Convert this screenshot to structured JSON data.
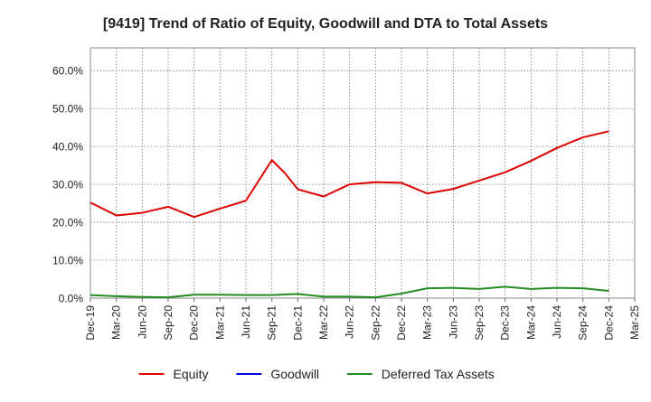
{
  "chart_data": {
    "type": "line",
    "title": "[9419]  Trend of Ratio of Equity, Goodwill and DTA to Total Assets",
    "xlabel": "",
    "ylabel": "",
    "ylim": [
      0,
      66
    ],
    "yticks": [
      0,
      10,
      20,
      30,
      40,
      50,
      60
    ],
    "ytick_labels": [
      "0.0%",
      "10.0%",
      "20.0%",
      "30.0%",
      "40.0%",
      "50.0%",
      "60.0%"
    ],
    "x_range": [
      0,
      21
    ],
    "x_tick_labels": [
      "Dec-19",
      "Mar-20",
      "Jun-20",
      "Sep-20",
      "Dec-20",
      "Mar-21",
      "Jun-21",
      "Sep-21",
      "Dec-21",
      "Mar-22",
      "Jun-22",
      "Sep-22",
      "Dec-22",
      "Mar-23",
      "Jun-23",
      "Sep-23",
      "Dec-23",
      "Mar-24",
      "Jun-24",
      "Sep-24",
      "Dec-24",
      "Mar-25"
    ],
    "grid": true,
    "legend_position": "bottom-center",
    "series": [
      {
        "name": "Equity",
        "color": "#dd0000",
        "points": [
          [
            0,
            25.2
          ],
          [
            1,
            21.8
          ],
          [
            2,
            22.5
          ],
          [
            3,
            24.1
          ],
          [
            4,
            21.4
          ],
          [
            5,
            23.6
          ],
          [
            6,
            25.7
          ],
          [
            7,
            36.4
          ],
          [
            7.5,
            33.0
          ],
          [
            8,
            28.7
          ],
          [
            9,
            26.8
          ],
          [
            10,
            30.0
          ],
          [
            11,
            30.6
          ],
          [
            12,
            30.4
          ],
          [
            13,
            27.6
          ],
          [
            14,
            28.8
          ],
          [
            15,
            31.0
          ],
          [
            16,
            33.2
          ],
          [
            17,
            36.2
          ],
          [
            18,
            39.6
          ],
          [
            19,
            42.4
          ],
          [
            20,
            44.0
          ]
        ]
      },
      {
        "name": "Goodwill",
        "color": "#0000dd",
        "points": []
      },
      {
        "name": "Deferred Tax Assets",
        "color": "#228b22",
        "points": [
          [
            0,
            0.8
          ],
          [
            1,
            0.5
          ],
          [
            2,
            0.3
          ],
          [
            3,
            0.2
          ],
          [
            4,
            0.9
          ],
          [
            5,
            0.9
          ],
          [
            6,
            0.8
          ],
          [
            7,
            0.8
          ],
          [
            8,
            1.1
          ],
          [
            9,
            0.4
          ],
          [
            10,
            0.4
          ],
          [
            11,
            0.2
          ],
          [
            12,
            1.2
          ],
          [
            13,
            2.6
          ],
          [
            14,
            2.7
          ],
          [
            15,
            2.4
          ],
          [
            16,
            3.0
          ],
          [
            17,
            2.4
          ],
          [
            18,
            2.7
          ],
          [
            19,
            2.6
          ],
          [
            20,
            1.9
          ]
        ]
      }
    ]
  }
}
